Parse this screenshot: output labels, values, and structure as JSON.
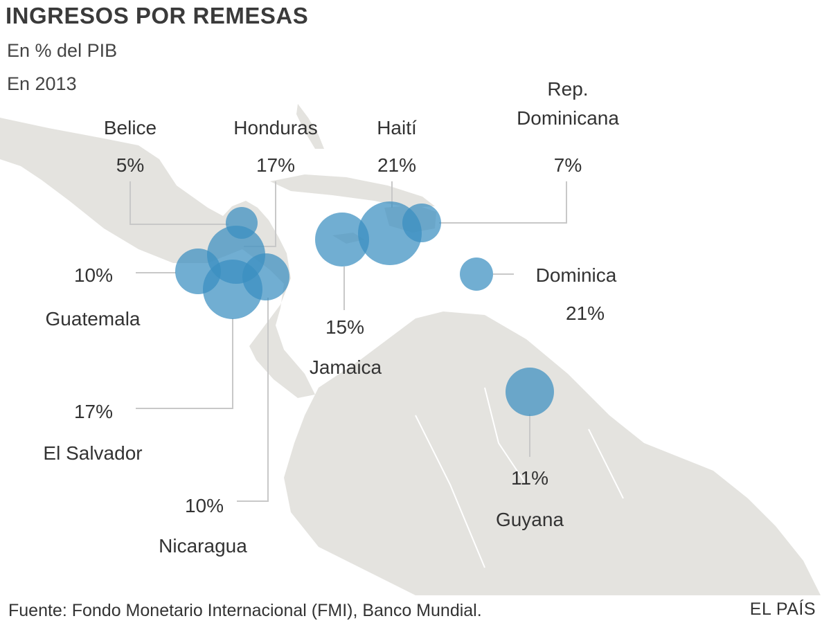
{
  "header": {
    "title": "INGRESOS POR REMESAS",
    "subtitle1": "En % del PIB",
    "subtitle2": "En 2013"
  },
  "colors": {
    "land": "#e4e3df",
    "bubble": "#3a8fc0",
    "leader": "#c8c8c8",
    "text": "#333333"
  },
  "countries": [
    {
      "name": "Belice",
      "value": "5%"
    },
    {
      "name": "Honduras",
      "value": "17%"
    },
    {
      "name": "Haití",
      "value": "21%"
    },
    {
      "name": "Rep.",
      "name2": "Dominicana",
      "value": "7%"
    },
    {
      "name": "Guatemala",
      "value": "10%"
    },
    {
      "name": "Dominica",
      "value": "21%"
    },
    {
      "name": "Jamaica",
      "value": "15%"
    },
    {
      "name": "El Salvador",
      "value": "17%"
    },
    {
      "name": "Nicaragua",
      "value": "10%"
    },
    {
      "name": "Guyana",
      "value": "11%"
    }
  ],
  "footer": {
    "source": "Fuente: Fondo Monetario Internacional (FMI), Banco Mundial.",
    "brand": "EL PAÍS"
  }
}
